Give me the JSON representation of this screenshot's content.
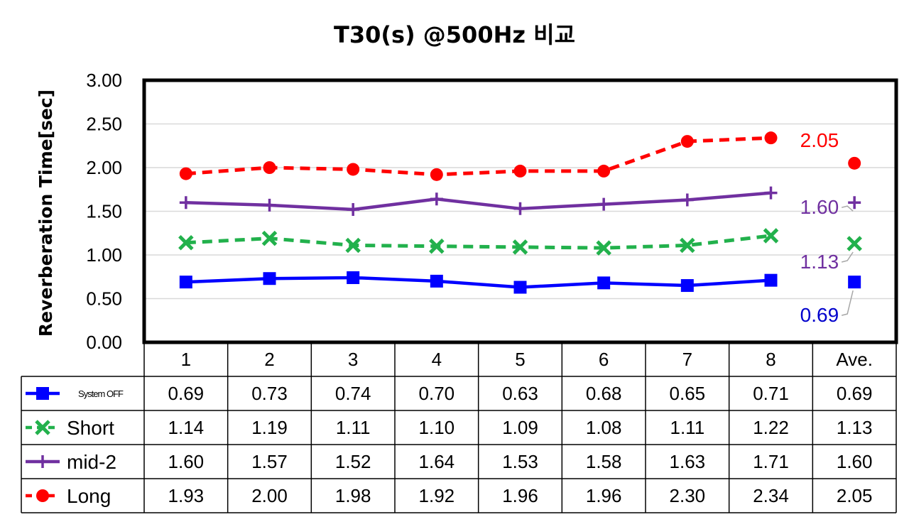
{
  "chart_data": {
    "type": "line",
    "title": "T30(s) @500Hz 비교",
    "ylabel": "Reverberation Time[sec]",
    "xlabel": "",
    "ylim": [
      0,
      3
    ],
    "yticks": [
      "0.00",
      "0.50",
      "1.00",
      "1.50",
      "2.00",
      "2.50",
      "3.00"
    ],
    "categories": [
      "1",
      "2",
      "3",
      "4",
      "5",
      "6",
      "7",
      "8",
      "Ave."
    ],
    "grid": true,
    "legend": "data table below chart",
    "series": [
      {
        "name": "System OFF",
        "color": "#0000ff",
        "marker": "square",
        "dash": "solid",
        "values": [
          0.69,
          0.73,
          0.74,
          0.7,
          0.63,
          0.68,
          0.65,
          0.71,
          0.69
        ],
        "labels": [
          "0.69",
          "0.73",
          "0.74",
          "0.70",
          "0.63",
          "0.68",
          "0.65",
          "0.71",
          "0.69"
        ]
      },
      {
        "name": "Short",
        "color": "#22b14c",
        "marker": "x",
        "dash": "dashed",
        "values": [
          1.14,
          1.19,
          1.11,
          1.1,
          1.09,
          1.08,
          1.11,
          1.22,
          1.13
        ],
        "labels": [
          "1.14",
          "1.19",
          "1.11",
          "1.10",
          "1.09",
          "1.08",
          "1.11",
          "1.22",
          "1.13"
        ]
      },
      {
        "name": "mid-2",
        "color": "#7030a0",
        "marker": "plus",
        "dash": "solid",
        "values": [
          1.6,
          1.57,
          1.52,
          1.64,
          1.53,
          1.58,
          1.63,
          1.71,
          1.6
        ],
        "labels": [
          "1.60",
          "1.57",
          "1.52",
          "1.64",
          "1.53",
          "1.58",
          "1.63",
          "1.71",
          "1.60"
        ]
      },
      {
        "name": "Long",
        "color": "#ff0000",
        "marker": "circle",
        "dash": "dashed",
        "values": [
          1.93,
          2.0,
          1.98,
          1.92,
          1.96,
          1.96,
          2.3,
          2.34,
          2.05
        ],
        "labels": [
          "1.93",
          "2.00",
          "1.98",
          "1.92",
          "1.96",
          "1.96",
          "2.30",
          "2.34",
          "2.05"
        ]
      }
    ],
    "annotations": [
      {
        "series": "Long",
        "text": "2.05",
        "color": "#ff0000"
      },
      {
        "series": "mid-2",
        "text": "1.60",
        "color": "#7030a0"
      },
      {
        "series": "Short",
        "text": "1.13",
        "color": "#7030a0"
      },
      {
        "series": "System OFF",
        "text": "0.69",
        "color": "#0000cc"
      }
    ]
  }
}
